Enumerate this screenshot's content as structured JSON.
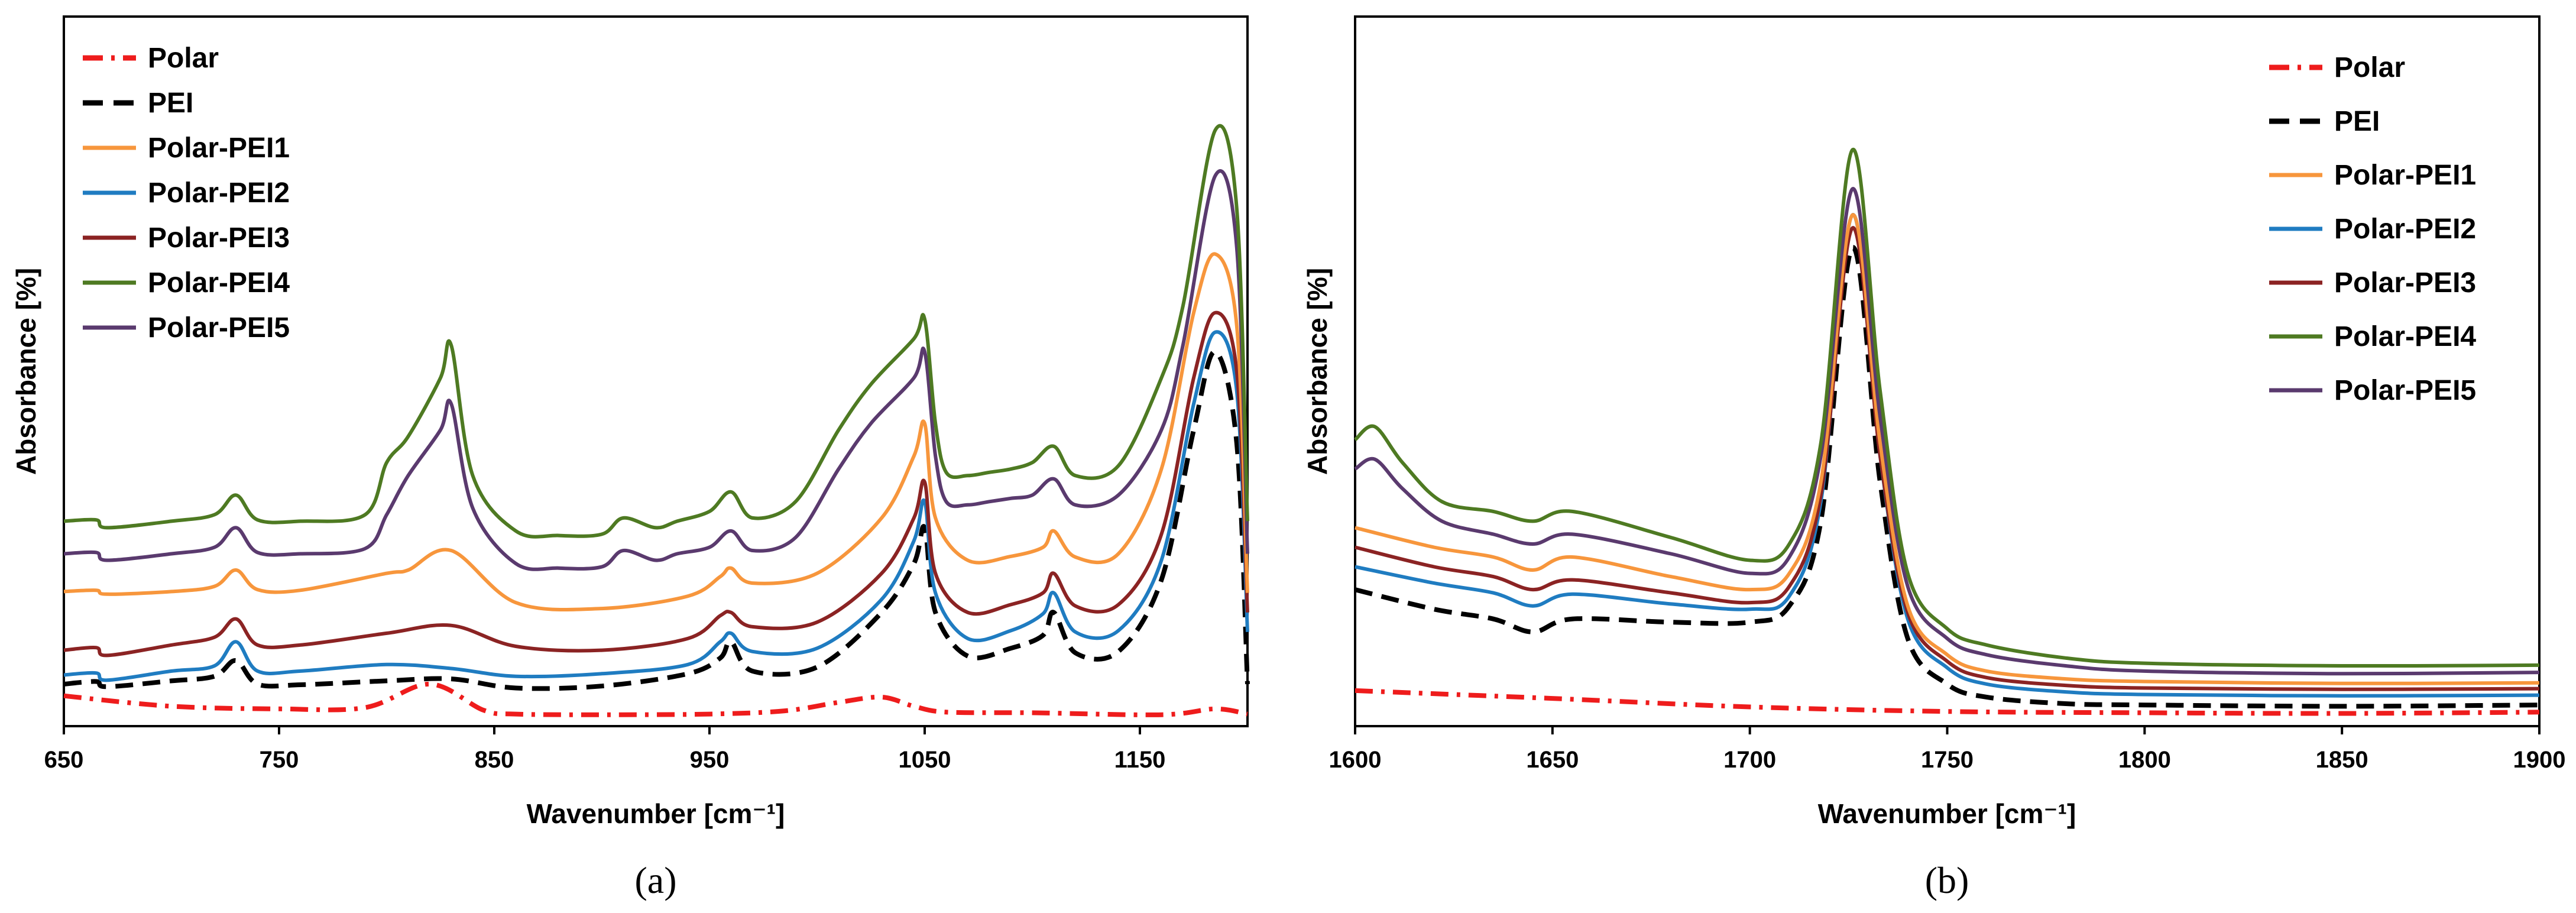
{
  "series_styles": [
    {
      "name": "Polar",
      "color": "#ee1c1c",
      "dash": "dashdot"
    },
    {
      "name": "PEI",
      "color": "#000000",
      "dash": "dash"
    },
    {
      "name": "Polar-PEI1",
      "color": "#f7963c",
      "dash": "solid"
    },
    {
      "name": "Polar-PEI2",
      "color": "#1f7cc1",
      "dash": "solid"
    },
    {
      "name": "Polar-PEI3",
      "color": "#8b2323",
      "dash": "solid"
    },
    {
      "name": "Polar-PEI4",
      "color": "#4e7a22",
      "dash": "solid"
    },
    {
      "name": "Polar-PEI5",
      "color": "#5a3a6e",
      "dash": "solid"
    }
  ],
  "chart_data": [
    {
      "type": "line",
      "panel_label": "(a)",
      "xlabel": "Wavenumber [cm⁻¹]",
      "ylabel": "Absorbance [%]",
      "xlim": [
        650,
        1200
      ],
      "ylim": [
        0,
        100
      ],
      "xticks": [
        650,
        750,
        850,
        950,
        1050,
        1150
      ],
      "legend_position": "top-left",
      "series": [
        {
          "name": "Polar",
          "x": [
            650,
            700,
            750,
            790,
            820,
            845,
            860,
            900,
            950,
            985,
            1010,
            1030,
            1045,
            1060,
            1100,
            1160,
            1185,
            1200
          ],
          "values": [
            3.2,
            1.6,
            1.2,
            1.4,
            5.0,
            1.0,
            0.4,
            0.3,
            0.4,
            0.9,
            2.2,
            3.0,
            1.6,
            0.7,
            0.6,
            0.3,
            1.2,
            0.4
          ]
        },
        {
          "name": "PEI",
          "x": [
            650,
            665,
            670,
            700,
            720,
            730,
            740,
            760,
            800,
            830,
            860,
            900,
            940,
            955,
            960,
            970,
            1000,
            1030,
            1045,
            1050,
            1055,
            1070,
            1090,
            1105,
            1110,
            1120,
            1140,
            1160,
            1175,
            1185,
            1195,
            1200
          ],
          "values": [
            5.0,
            5.4,
            4.6,
            5.5,
            6.2,
            8.6,
            5.0,
            4.9,
            5.5,
            5.8,
            4.4,
            4.7,
            6.6,
            9.0,
            11.5,
            7.0,
            7.6,
            16.0,
            23.5,
            29.0,
            16.0,
            9.3,
            10.5,
            12.5,
            16.0,
            9.8,
            10.0,
            21.0,
            44.0,
            56.0,
            42.0,
            5.0
          ]
        },
        {
          "name": "Polar-PEI2",
          "x": [
            650,
            665,
            670,
            700,
            720,
            730,
            740,
            760,
            800,
            830,
            860,
            900,
            940,
            955,
            960,
            970,
            1000,
            1030,
            1045,
            1050,
            1055,
            1070,
            1090,
            1105,
            1110,
            1120,
            1140,
            1160,
            1175,
            1185,
            1195,
            1200
          ],
          "values": [
            6.4,
            6.7,
            5.6,
            7.0,
            7.8,
            11.5,
            7.0,
            7.0,
            8.0,
            7.4,
            6.2,
            6.6,
            8.0,
            11.5,
            12.8,
            10.0,
            10.5,
            18.0,
            27.0,
            33.0,
            19.0,
            12.0,
            13.2,
            15.8,
            19.0,
            13.0,
            13.2,
            24.0,
            48.0,
            59.0,
            50.0,
            13.0
          ]
        },
        {
          "name": "Polar-PEI3",
          "x": [
            650,
            665,
            670,
            700,
            720,
            730,
            740,
            760,
            800,
            830,
            860,
            900,
            940,
            955,
            960,
            970,
            1000,
            1030,
            1045,
            1050,
            1055,
            1070,
            1090,
            1105,
            1110,
            1120,
            1140,
            1160,
            1175,
            1185,
            1195,
            1200
          ],
          "values": [
            10.2,
            10.6,
            9.4,
            11.0,
            12.2,
            15.0,
            11.0,
            11.0,
            12.8,
            14.0,
            10.8,
            10.2,
            12.0,
            15.5,
            16.0,
            13.8,
            14.5,
            22.0,
            30.5,
            36.0,
            22.0,
            16.0,
            17.2,
            19.0,
            22.0,
            17.0,
            17.2,
            28.0,
            52.0,
            62.0,
            53.0,
            16.0
          ]
        },
        {
          "name": "Polar-PEI1",
          "x": [
            650,
            665,
            670,
            700,
            720,
            730,
            740,
            760,
            800,
            810,
            830,
            860,
            900,
            940,
            955,
            960,
            970,
            1000,
            1030,
            1045,
            1050,
            1055,
            1070,
            1090,
            1105,
            1110,
            1120,
            1140,
            1160,
            1175,
            1185,
            1195,
            1200
          ],
          "values": [
            19.2,
            19.4,
            18.8,
            19.2,
            20.0,
            22.5,
            19.5,
            19.4,
            22.0,
            22.5,
            25.5,
            17.5,
            16.6,
            18.5,
            21.5,
            22.8,
            20.5,
            22.0,
            30.5,
            40.0,
            45.0,
            30.5,
            24.0,
            24.6,
            26.0,
            28.5,
            24.5,
            25.0,
            38.0,
            62.0,
            71.0,
            60.0,
            19.0
          ]
        },
        {
          "name": "Polar-PEI5",
          "x": [
            650,
            665,
            670,
            700,
            720,
            730,
            740,
            760,
            790,
            800,
            810,
            825,
            830,
            840,
            860,
            880,
            900,
            910,
            925,
            935,
            950,
            960,
            970,
            990,
            1010,
            1025,
            1045,
            1050,
            1055,
            1060,
            1070,
            1080,
            1090,
            1100,
            1110,
            1120,
            1140,
            1160,
            1170,
            1185,
            1195,
            1200
          ],
          "values": [
            25.0,
            25.2,
            24.0,
            25.0,
            26.0,
            29.0,
            25.2,
            25.0,
            25.8,
            31.0,
            37.0,
            44.0,
            48.0,
            32.0,
            23.5,
            22.8,
            23.0,
            25.5,
            24.0,
            25.0,
            26.0,
            28.5,
            25.5,
            27.5,
            38.0,
            45.0,
            52.0,
            56.0,
            40.0,
            33.0,
            32.5,
            33.0,
            33.5,
            34.0,
            36.5,
            32.5,
            34.0,
            44.0,
            57.0,
            83.0,
            72.0,
            25.0
          ]
        },
        {
          "name": "Polar-PEI4",
          "x": [
            650,
            665,
            670,
            700,
            720,
            730,
            740,
            760,
            790,
            800,
            810,
            825,
            830,
            840,
            860,
            880,
            900,
            910,
            925,
            935,
            950,
            960,
            970,
            990,
            1010,
            1025,
            1045,
            1050,
            1055,
            1060,
            1070,
            1080,
            1090,
            1100,
            1110,
            1120,
            1140,
            1160,
            1170,
            1185,
            1195,
            1200
          ],
          "values": [
            30.0,
            30.2,
            29.0,
            30.0,
            31.0,
            34.0,
            30.2,
            30.0,
            31.0,
            39.0,
            43.0,
            52.0,
            57.0,
            37.0,
            28.5,
            27.8,
            28.0,
            30.5,
            29.0,
            30.0,
            31.5,
            34.5,
            30.5,
            33.0,
            44.0,
            51.0,
            58.0,
            61.0,
            45.0,
            37.5,
            37.0,
            37.5,
            38.0,
            39.0,
            41.5,
            37.0,
            38.5,
            52.0,
            63.0,
            90.0,
            78.0,
            30.0
          ]
        }
      ]
    },
    {
      "type": "line",
      "panel_label": "(b)",
      "xlabel": "Wavenumber [cm⁻¹]",
      "ylabel": "Absorbance [%]",
      "xlim": [
        1600,
        1900
      ],
      "ylim": [
        0,
        100
      ],
      "xticks": [
        1600,
        1650,
        1700,
        1750,
        1800,
        1850,
        1900
      ],
      "legend_position": "top-right",
      "series": [
        {
          "name": "Polar",
          "x": [
            1600,
            1650,
            1700,
            1750,
            1800,
            1850,
            1900
          ],
          "values": [
            4.0,
            2.8,
            1.5,
            0.8,
            0.6,
            0.5,
            0.7
          ]
        },
        {
          "name": "PEI",
          "x": [
            1600,
            1620,
            1635,
            1645,
            1655,
            1680,
            1700,
            1710,
            1718,
            1726,
            1733,
            1740,
            1750,
            1760,
            1780,
            1800,
            1850,
            1900
          ],
          "values": [
            19.5,
            16.5,
            15.0,
            13.0,
            15.0,
            14.5,
            14.5,
            17.0,
            30.0,
            72.0,
            36.0,
            12.0,
            5.0,
            3.0,
            2.0,
            1.8,
            1.6,
            1.8
          ]
        },
        {
          "name": "Polar-PEI2",
          "x": [
            1600,
            1620,
            1635,
            1645,
            1655,
            1680,
            1700,
            1710,
            1718,
            1726,
            1733,
            1740,
            1750,
            1760,
            1780,
            1800,
            1850,
            1900
          ],
          "values": [
            23.0,
            20.5,
            19.0,
            17.0,
            18.8,
            17.3,
            16.5,
            18.5,
            33.0,
            77.0,
            40.0,
            15.0,
            7.5,
            5.0,
            3.8,
            3.4,
            3.2,
            3.3
          ]
        },
        {
          "name": "Polar-PEI3",
          "x": [
            1600,
            1620,
            1635,
            1645,
            1655,
            1680,
            1700,
            1710,
            1718,
            1726,
            1733,
            1740,
            1750,
            1760,
            1780,
            1800,
            1850,
            1900
          ],
          "values": [
            26.0,
            23.0,
            21.5,
            19.5,
            21.0,
            19.0,
            17.5,
            20.0,
            34.0,
            75.0,
            40.0,
            16.0,
            8.5,
            6.0,
            4.8,
            4.4,
            4.2,
            4.3
          ]
        },
        {
          "name": "Polar-PEI1",
          "x": [
            1600,
            1620,
            1635,
            1645,
            1655,
            1680,
            1700,
            1710,
            1718,
            1726,
            1733,
            1740,
            1750,
            1760,
            1780,
            1800,
            1850,
            1900
          ],
          "values": [
            29.0,
            26.0,
            24.5,
            22.5,
            24.5,
            21.5,
            19.5,
            22.0,
            36.0,
            77.0,
            42.0,
            17.0,
            9.5,
            7.0,
            5.8,
            5.4,
            5.1,
            5.2
          ]
        },
        {
          "name": "Polar-PEI5",
          "x": [
            1600,
            1605,
            1612,
            1622,
            1635,
            1645,
            1655,
            1680,
            1700,
            1710,
            1718,
            1726,
            1733,
            1740,
            1750,
            1760,
            1780,
            1800,
            1850,
            1900
          ],
          "values": [
            38.0,
            39.5,
            35.0,
            30.0,
            28.0,
            26.5,
            28.0,
            25.0,
            22.0,
            24.5,
            40.0,
            81.0,
            46.0,
            20.0,
            12.0,
            9.5,
            7.8,
            7.0,
            6.6,
            6.8
          ]
        },
        {
          "name": "Polar-PEI4",
          "x": [
            1600,
            1605,
            1612,
            1622,
            1635,
            1645,
            1655,
            1680,
            1700,
            1710,
            1718,
            1726,
            1733,
            1740,
            1750,
            1760,
            1780,
            1800,
            1850,
            1900
          ],
          "values": [
            42.5,
            44.5,
            39.0,
            33.0,
            31.5,
            30.0,
            31.5,
            27.5,
            24.0,
            26.5,
            42.0,
            87.0,
            50.0,
            22.0,
            13.5,
            11.0,
            9.0,
            8.2,
            7.8,
            7.9
          ]
        }
      ]
    }
  ]
}
